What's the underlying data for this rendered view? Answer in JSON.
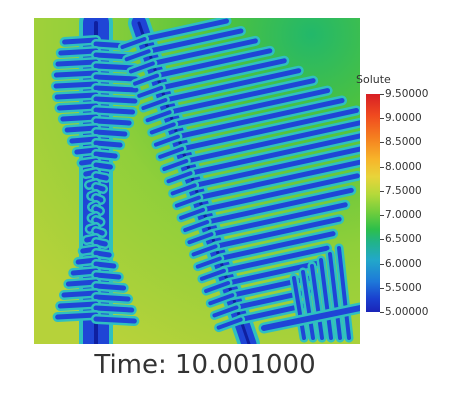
{
  "colorbar": {
    "title": "Solute",
    "ticks": [
      "9.50000",
      "9.0000",
      "8.5000",
      "8.0000",
      "7.5000",
      "7.0000",
      "6.5000",
      "6.0000",
      "5.5000",
      "5.00000"
    ],
    "colors": [
      "#1a24b8",
      "#1e79d9",
      "#22a8c9",
      "#2dbf4a",
      "#b5d93a",
      "#e8d43a",
      "#f57f1f",
      "#d71f25"
    ]
  },
  "plot": {
    "background_color": "#8fcf3a",
    "dendrite_color": "#1a3fcf"
  },
  "time_label": "Time: 10.001000"
}
